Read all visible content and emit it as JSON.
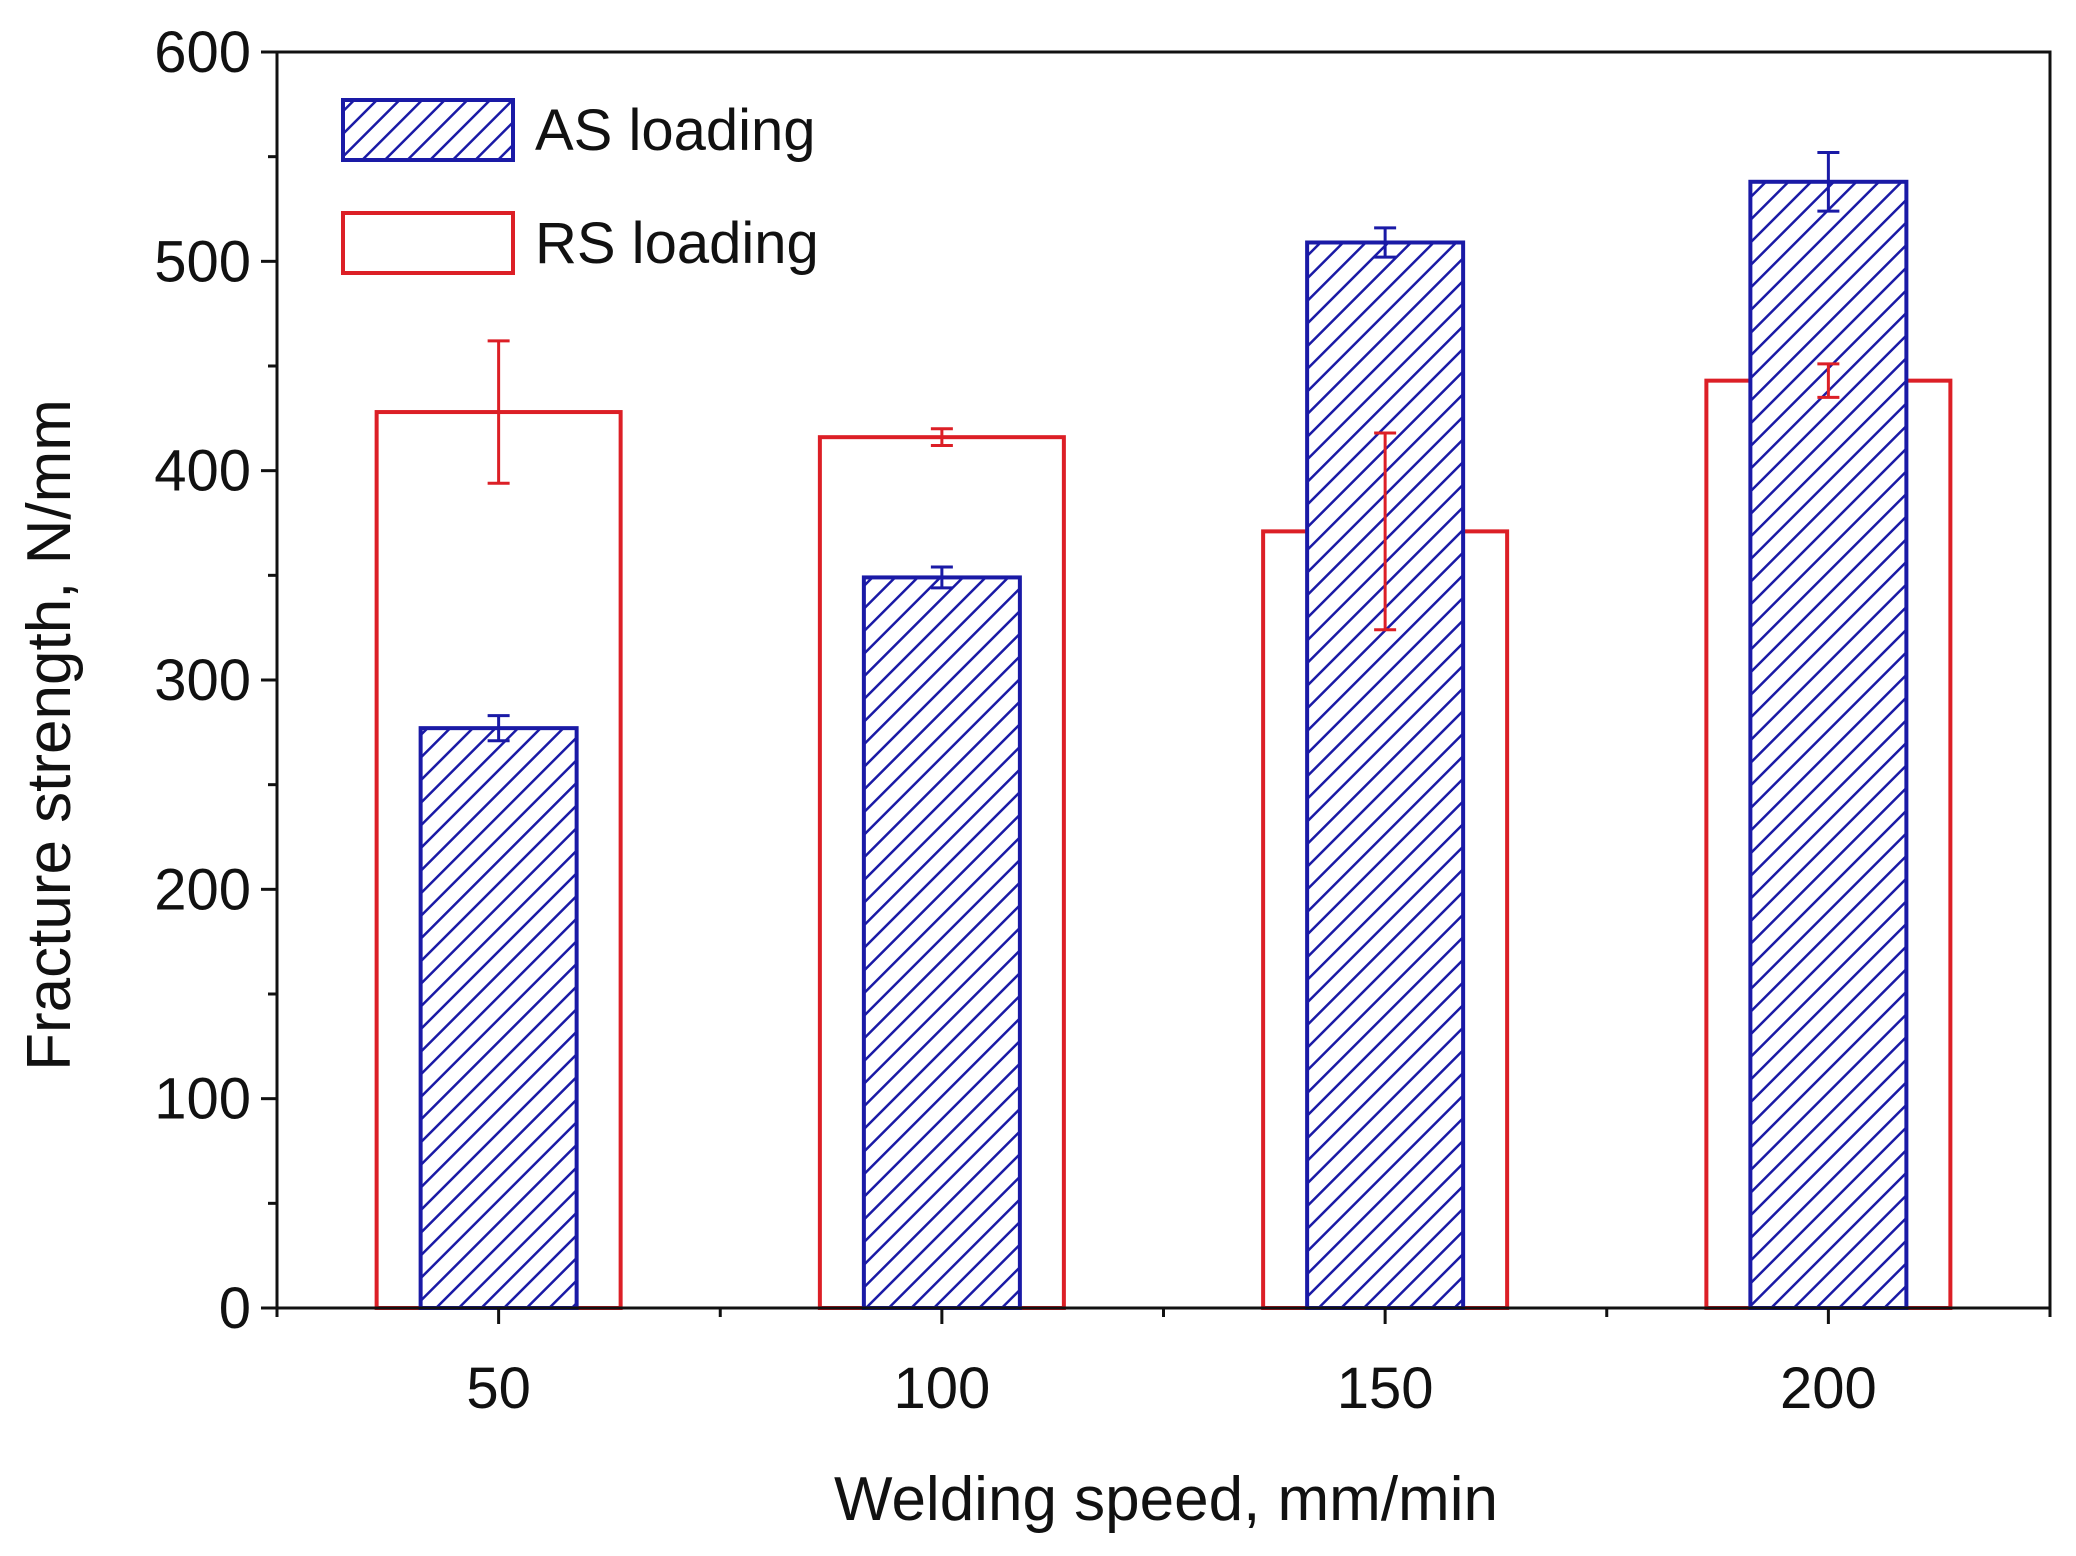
{
  "chart_data": {
    "type": "bar",
    "title": "",
    "xlabel": "Welding speed, mm/min",
    "ylabel": "Fracture strength, N/mm",
    "categories": [
      "50",
      "100",
      "150",
      "200"
    ],
    "ylim": [
      0,
      600
    ],
    "yticks": [
      0,
      100,
      200,
      300,
      400,
      500,
      600
    ],
    "grid": false,
    "legend_position": "top-left",
    "series": [
      {
        "name": "AS loading",
        "style": "hatched",
        "color": "#1a1aa6",
        "values": [
          277,
          349,
          509,
          538
        ],
        "errors": [
          6,
          5,
          7,
          14
        ]
      },
      {
        "name": "RS loading",
        "style": "hollow",
        "color": "#dc1f26",
        "values": [
          428,
          416,
          371,
          443
        ],
        "errors": [
          34,
          4,
          47,
          8
        ]
      }
    ]
  }
}
